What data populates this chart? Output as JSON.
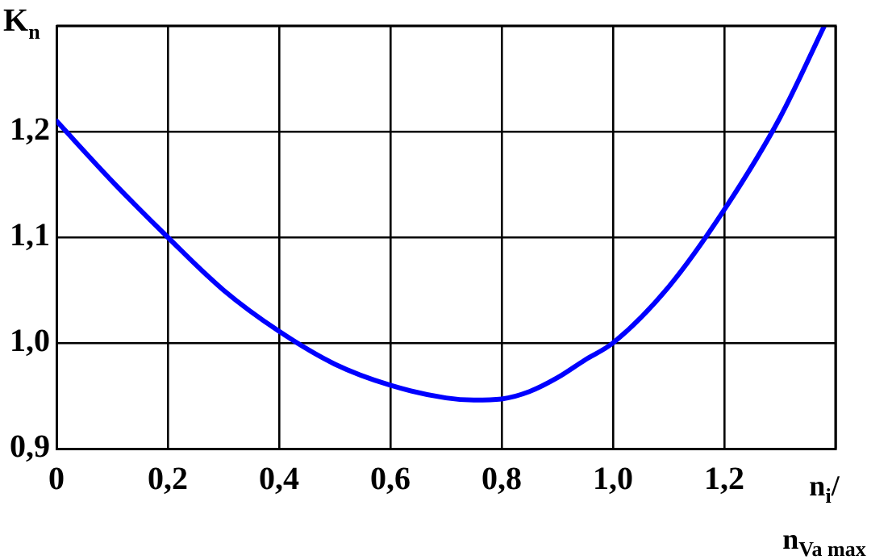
{
  "chart_data": {
    "type": "line",
    "xlabel": "n$_{i}$/n$_{Va max}$",
    "ylabel": "K$_{n}$",
    "x": [
      0,
      0.1,
      0.2,
      0.3,
      0.4,
      0.5,
      0.6,
      0.7,
      0.75,
      0.8,
      0.85,
      0.9,
      0.95,
      1.0,
      1.1,
      1.2,
      1.3,
      1.38
    ],
    "series": [
      {
        "color": "#0000ff",
        "values": [
          1.21,
          1.153,
          1.1,
          1.05,
          1.011,
          0.98,
          0.96,
          0.948,
          0.946,
          0.947,
          0.954,
          0.967,
          0.984,
          1.0,
          1.053,
          1.126,
          1.213,
          1.3
        ]
      }
    ],
    "xlim": [
      0,
      1.4
    ],
    "ylim": [
      0.9,
      1.3
    ],
    "xticks": [
      0,
      {
        "value": 0.2,
        "label": "0,2"
      },
      {
        "value": 0.4,
        "label": "0,4"
      },
      {
        "value": 0.6,
        "label": "0,6"
      },
      {
        "value": 0.8,
        "label": "0,8"
      },
      {
        "value": 1.0,
        "label": "1,0"
      },
      {
        "value": 1.2,
        "label": "1,2"
      },
      {
        "value": 1.4,
        "label": null
      }
    ],
    "yticks": [
      {
        "value": 0.9,
        "label": "0,9"
      },
      {
        "value": 1.0,
        "label": "1,0"
      },
      {
        "value": 1.1,
        "label": "1,1"
      },
      {
        "value": 1.2,
        "label": "1,2"
      },
      {
        "value": 1.3,
        "label": null
      }
    ],
    "grid": true,
    "legend": false,
    "marker": "none",
    "line_style": "solid"
  }
}
